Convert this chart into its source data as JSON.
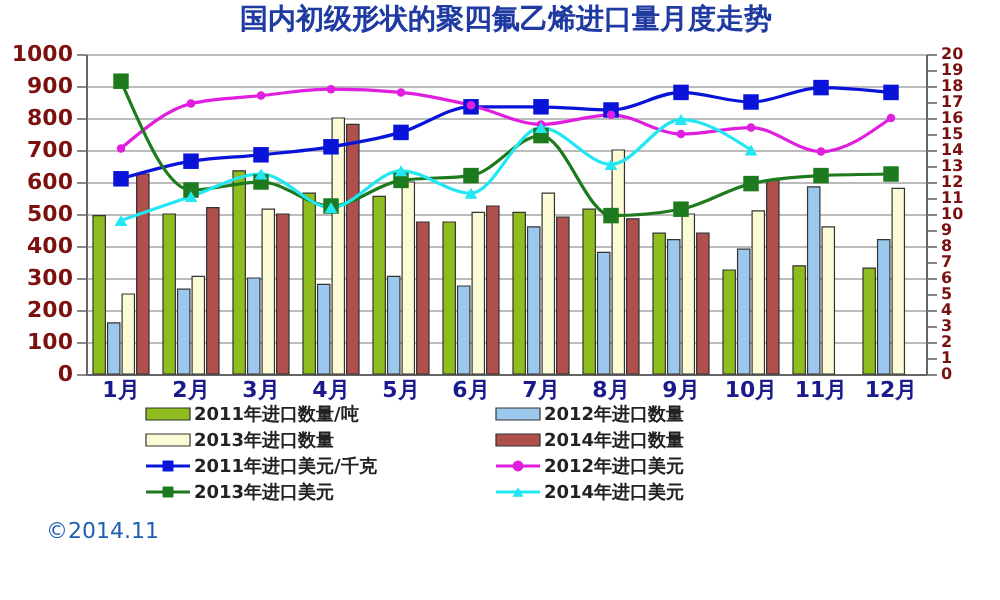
{
  "chart_data": {
    "type": "bar",
    "title": "国内初级形状的聚四氟乙烯进口量月度走势",
    "categories": [
      "1月",
      "2月",
      "3月",
      "4月",
      "5月",
      "6月",
      "7月",
      "8月",
      "9月",
      "10月",
      "11月",
      "12月"
    ],
    "series": [
      {
        "name": "2011年进口数量/吨",
        "color": "#8fbc1e",
        "values": [
          495,
          500,
          635,
          565,
          555,
          475,
          505,
          515,
          440,
          325,
          338,
          331
        ]
      },
      {
        "name": "2012年进口数量",
        "color": "#9cc8ee",
        "values": [
          160,
          265,
          300,
          280,
          305,
          275,
          460,
          380,
          420,
          390,
          585,
          420
        ]
      },
      {
        "name": "2013年进口数量",
        "color": "#fbfbd6",
        "values": [
          250,
          305,
          515,
          800,
          600,
          505,
          565,
          700,
          500,
          510,
          460,
          580
        ]
      },
      {
        "name": "2014年进口数量",
        "color": "#b0504c",
        "values": [
          625,
          520,
          500,
          780,
          475,
          525,
          490,
          485,
          440,
          605,
          null,
          null
        ]
      },
      {
        "name": "2011年进口美元/千克",
        "type": "line",
        "axis": "y2",
        "marker": "square",
        "color": "#0a14d8",
        "values": [
          12.2,
          13.3,
          13.7,
          14.2,
          15.1,
          16.7,
          16.7,
          16.5,
          17.6,
          17.0,
          17.9,
          17.6
        ]
      },
      {
        "name": "2012年进口美元",
        "type": "line",
        "axis": "y2",
        "marker": "circle",
        "color": "#e01ee0",
        "values": [
          14.1,
          16.9,
          17.4,
          17.8,
          17.6,
          16.8,
          15.6,
          16.2,
          15.0,
          15.4,
          13.9,
          16.0
        ]
      },
      {
        "name": "2013年进口美元",
        "type": "line",
        "axis": "y2",
        "marker": "square",
        "color": "#1e7a1e",
        "values": [
          18.3,
          11.5,
          12.0,
          10.5,
          12.1,
          12.4,
          14.9,
          9.9,
          10.3,
          11.9,
          12.4,
          12.5
        ]
      },
      {
        "name": "2014年进口美元",
        "type": "line",
        "axis": "y2",
        "marker": "triangle",
        "color": "#22e6f2",
        "values": [
          9.6,
          11.1,
          12.5,
          10.4,
          12.7,
          11.3,
          15.4,
          13.1,
          15.9,
          14.0,
          null,
          null
        ]
      }
    ],
    "ylim": [
      0,
      1000
    ],
    "yticks": [
      0,
      100,
      200,
      300,
      400,
      500,
      600,
      700,
      800,
      900,
      1000
    ],
    "line_style": "solid",
    "y2lim": [
      0,
      20
    ],
    "y2ticks": [
      0,
      1,
      2,
      3,
      4,
      5,
      6,
      7,
      8,
      9,
      10,
      11,
      12,
      13,
      14,
      15,
      16,
      17,
      18,
      19,
      20
    ],
    "grid": "y",
    "legend": "bottom",
    "annotations": [
      "©2014.11"
    ]
  }
}
